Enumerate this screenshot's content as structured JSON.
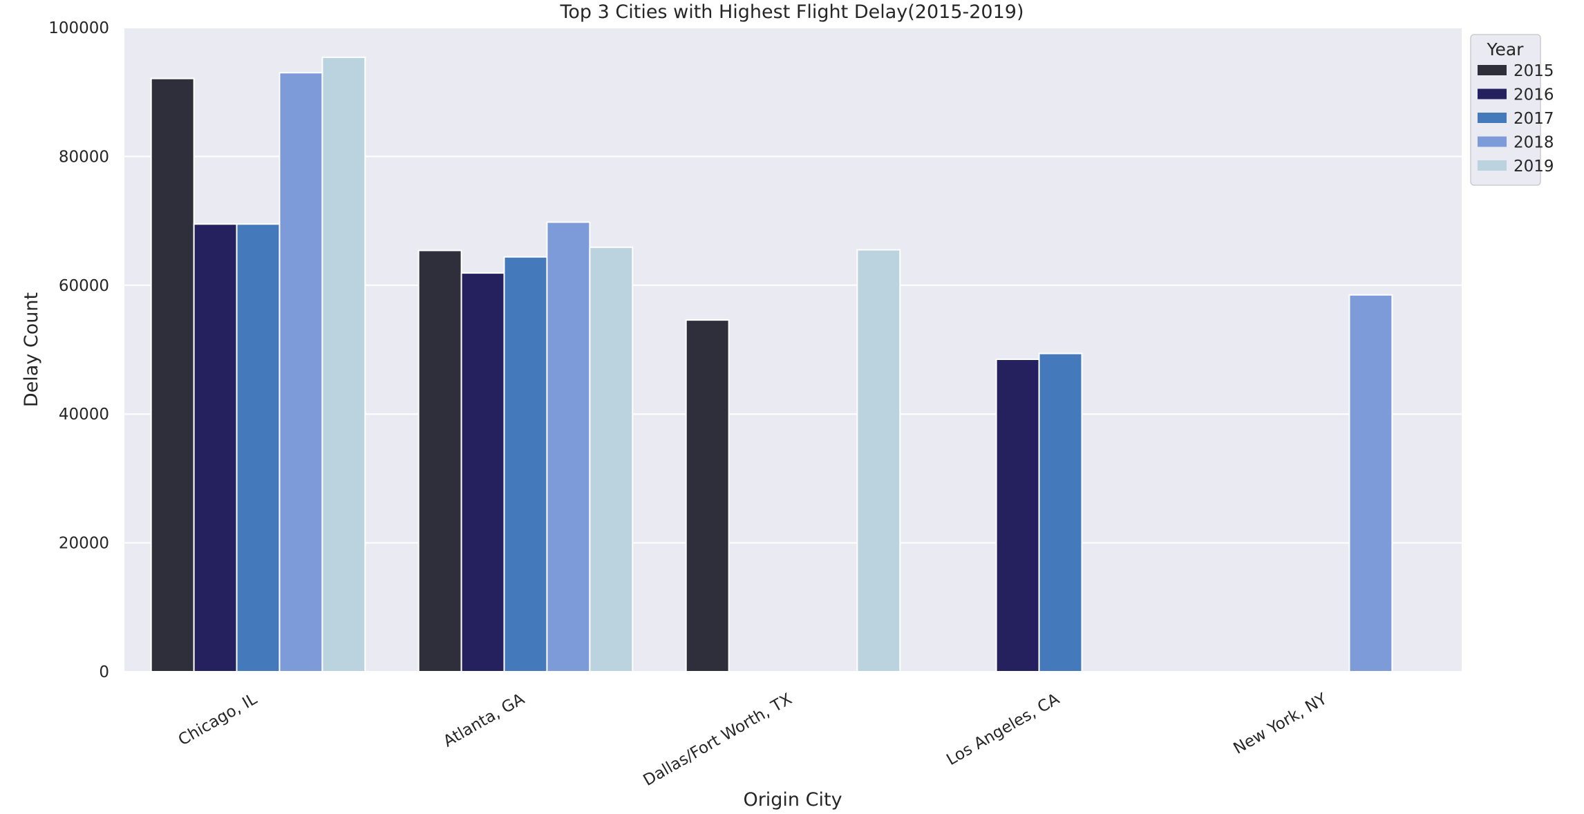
{
  "chart_data": {
    "type": "bar",
    "title": "Top 3 Cities with Highest Flight Delay(2015-2019)",
    "xlabel": "Origin City",
    "ylabel": "Delay Count",
    "ylim": [
      0,
      100000
    ],
    "yticks": [
      "0",
      "20000",
      "40000",
      "60000",
      "80000",
      "100000"
    ],
    "grid": true,
    "legend": {
      "title": "Year",
      "placement": "top-right"
    },
    "categories": [
      "Chicago, IL",
      "Atlanta, GA",
      "Dallas/Fort Worth, TX",
      "Los Angeles, CA",
      "New York, NY"
    ],
    "series": [
      {
        "name": "2015",
        "color": "#2f2e3b",
        "values": [
          92100,
          65400,
          54600,
          null,
          null
        ]
      },
      {
        "name": "2016",
        "color": "#24215e",
        "values": [
          69500,
          61900,
          null,
          48500,
          null
        ]
      },
      {
        "name": "2017",
        "color": "#4479bc",
        "values": [
          69500,
          64400,
          null,
          49400,
          null
        ]
      },
      {
        "name": "2018",
        "color": "#7e9bd9",
        "values": [
          93000,
          69800,
          null,
          null,
          58500
        ]
      },
      {
        "name": "2019",
        "color": "#bad3de",
        "values": [
          95400,
          65900,
          65500,
          null,
          null
        ]
      }
    ]
  },
  "style": {
    "plot_background": "#eaeaf2",
    "grid_color": "#ffffff"
  }
}
